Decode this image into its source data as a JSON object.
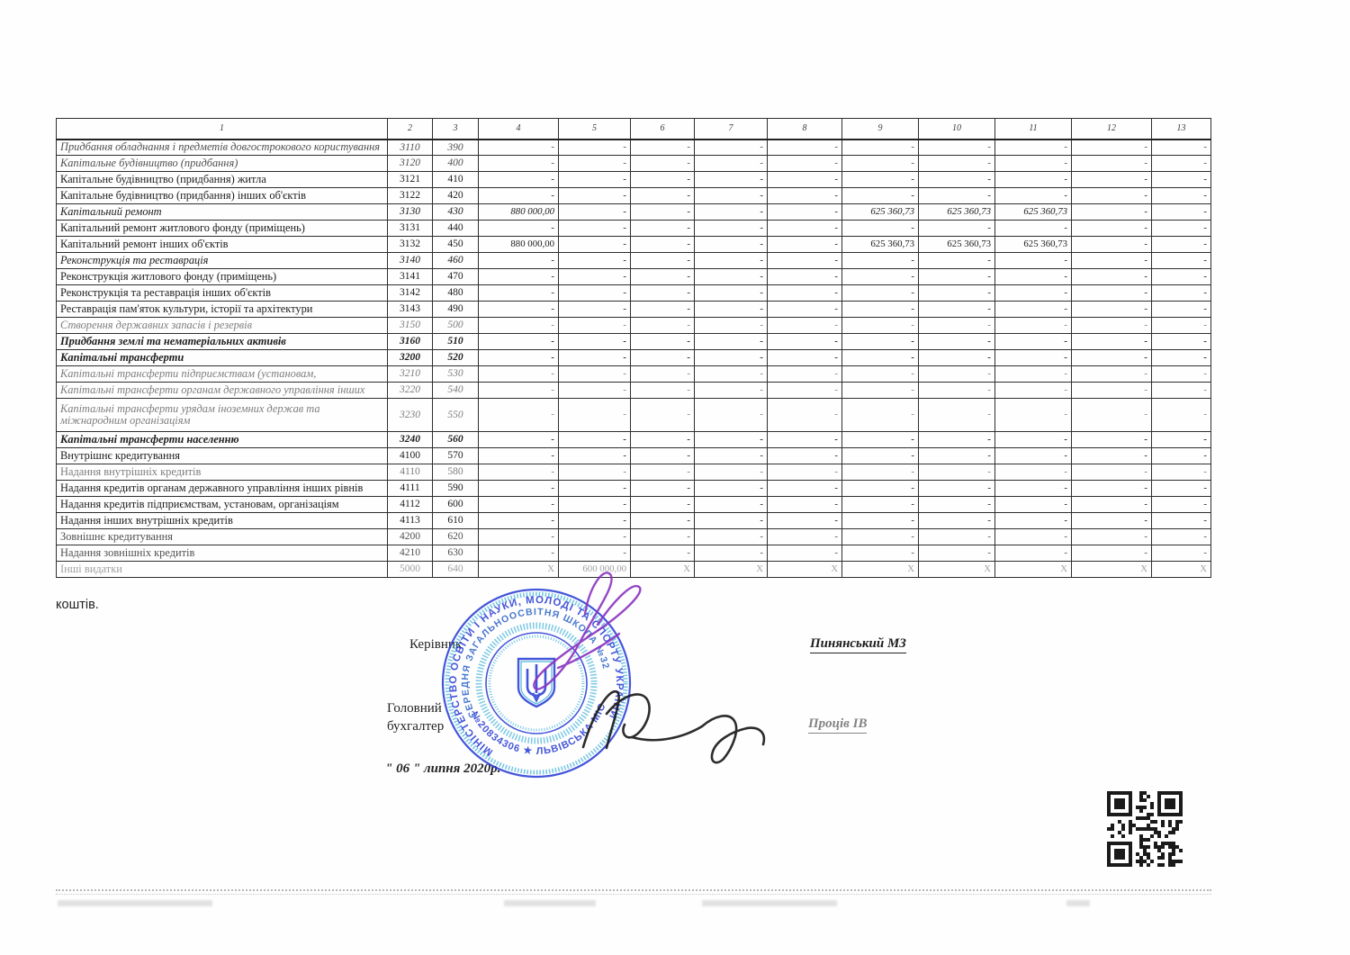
{
  "document": {
    "intro_text": "коштів.",
    "officials": {
      "kerivnyk_label": "Керівник",
      "kerivnyk_name": "Пинянський МЗ",
      "buhgalter_label_line1": "Головний",
      "buhgalter_label_line2": "бухгалтер",
      "buhgalter_name": "Проців ІВ",
      "date_line": "\" 06 \" липня 2020р."
    },
    "stamp": {
      "outer_text": "МІНІСТЕРСТВО ОСВІТИ І НАУКИ, МОЛОДІ ТА СПОРТУ УКРАЇНИ",
      "middle_text": "СЕРЕДНЯ ЗАГАЛЬНООСВІТНЯ ШКОЛА №32",
      "bottom_text": "№20834306 ★ ЛЬВІВСЬКА МІСЬКА РАДА ★",
      "blue": "#2a3fd4",
      "cyan": "#38aed8"
    }
  },
  "table": {
    "header_cols": [
      "1",
      "2",
      "3",
      "4",
      "5",
      "6",
      "7",
      "8",
      "9",
      "10",
      "11",
      "12",
      "13"
    ],
    "rows": [
      {
        "label": "Придбання обладнання і предметів довгострокового користування",
        "code": "3110",
        "line": "390",
        "cls": "i f1"
      },
      {
        "label": "Капітальне будівництво (придбання)",
        "code": "3120",
        "line": "400",
        "cls": "i f1"
      },
      {
        "label": "Капітальне будівництво (придбання) житла",
        "code": "3121",
        "line": "410",
        "cls": "n"
      },
      {
        "label": "Капітальне  будівництво (придбання) інших об'єктів",
        "code": "3122",
        "line": "420",
        "cls": "n"
      },
      {
        "label": "Капітальний ремонт",
        "code": "3130",
        "line": "430",
        "cls": "i",
        "cells": [
          "880 000,00",
          "-",
          "-",
          "-",
          "-",
          "625 360,73",
          "625 360,73",
          "625 360,73",
          "-",
          "-"
        ]
      },
      {
        "label": "Капітальний ремонт житлового фонду (приміщень)",
        "code": "3131",
        "line": "440",
        "cls": "n"
      },
      {
        "label": "Капітальний ремонт інших об'єктів",
        "code": "3132",
        "line": "450",
        "cls": "n",
        "cells": [
          "880 000,00",
          "-",
          "-",
          "-",
          "-",
          "625 360,73",
          "625 360,73",
          "625 360,73",
          "-",
          "-"
        ]
      },
      {
        "label": "Реконструкція  та  реставрація",
        "code": "3140",
        "line": "460",
        "cls": "i"
      },
      {
        "label": "Реконструкція житлового фонду (приміщень)",
        "code": "3141",
        "line": "470",
        "cls": "n"
      },
      {
        "label": "Реконструкція  та реставрація інших об'єктів",
        "code": "3142",
        "line": "480",
        "cls": "n"
      },
      {
        "label": "Реставрація пам'яток культури, історії та архітектури",
        "code": "3143",
        "line": "490",
        "cls": "n"
      },
      {
        "label": "Створення державних запасів і резервів",
        "code": "3150",
        "line": "500",
        "cls": "i f2"
      },
      {
        "label": "Придбання землі та нематеріальних активів",
        "code": "3160",
        "line": "510",
        "cls": "bi"
      },
      {
        "label": "Капітальні трансферти",
        "code": "3200",
        "line": "520",
        "cls": "bi"
      },
      {
        "label": "Капітальні трансферти підприємствам (установам,",
        "code": "3210",
        "line": "530",
        "cls": "i f2"
      },
      {
        "label": "Капітальні трансферти органам державного управління інших",
        "code": "3220",
        "line": "540",
        "cls": "i f2"
      },
      {
        "label": "Капітальні трансферти урядам іноземних держав та міжнародним організаціям",
        "code": "3230",
        "line": "550",
        "cls": "i f2 tall"
      },
      {
        "label": "Капітальні трансферти населенню",
        "code": "3240",
        "line": "560",
        "cls": "bi"
      },
      {
        "label": "Внутрішнє кредитування",
        "code": "4100",
        "line": "570",
        "cls": "n"
      },
      {
        "label": "Надання внутрішніх кредитів",
        "code": "4110",
        "line": "580",
        "cls": "n f2"
      },
      {
        "label": "Надання кредитів органам державного управління інших  рівнів",
        "code": "4111",
        "line": "590",
        "cls": "n"
      },
      {
        "label": "Надання кредитів підприємствам, установам, організаціям",
        "code": "4112",
        "line": "600",
        "cls": "n"
      },
      {
        "label": "Надання інших внутрішніх кредитів",
        "code": "4113",
        "line": "610",
        "cls": "n"
      },
      {
        "label": "Зовнішнє кредитування",
        "code": "4200",
        "line": "620",
        "cls": "n f1"
      },
      {
        "label": "Надання зовнішніх кредитів",
        "code": "4210",
        "line": "630",
        "cls": "n f1"
      },
      {
        "label": "Інші видатки",
        "code": "5000",
        "line": "640",
        "cls": "n f3",
        "cells": [
          "X",
          "600 000,00",
          "X",
          "X",
          "X",
          "X",
          "X",
          "X",
          "X",
          "X"
        ]
      }
    ]
  }
}
